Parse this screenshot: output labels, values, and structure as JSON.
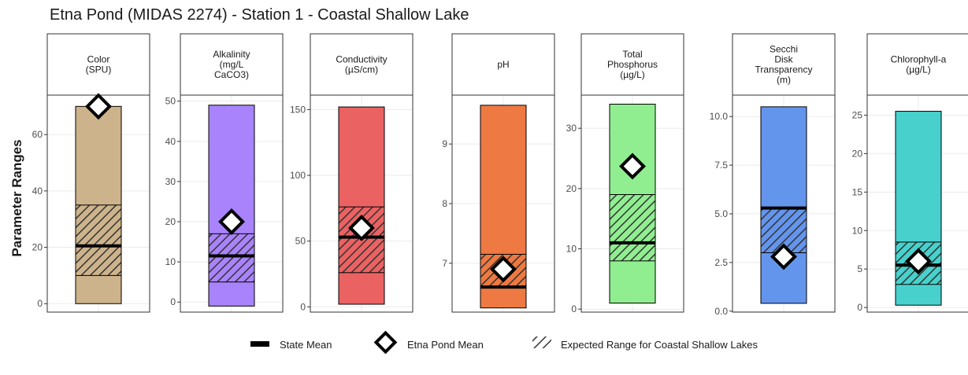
{
  "title": "Etna Pond (MIDAS 2274) - Station 1 - Coastal Shallow Lake",
  "ylabel": "Parameter Ranges",
  "legend": {
    "state_mean": "State Mean",
    "pond_mean": "Etna Pond Mean",
    "expected": "Expected Range for Coastal Shallow Lakes"
  },
  "chart_data": [
    {
      "type": "bar",
      "panel_label": [
        "Color",
        "(SPU)"
      ],
      "color": "#CDB38B",
      "ylim": [
        -3,
        74
      ],
      "ticks": [
        0,
        20,
        40,
        60
      ],
      "tick_labels": [
        "0",
        "20",
        "40",
        "60"
      ],
      "range": [
        0,
        70
      ],
      "expected": [
        10,
        35
      ],
      "state_mean": 20.5,
      "pond_mean": 70
    },
    {
      "type": "bar",
      "panel_label": [
        "Alkalinity",
        "(mg/L",
        "CaCO3)"
      ],
      "color": "#A983FB",
      "ylim": [
        -2.5,
        51.5
      ],
      "ticks": [
        0,
        10,
        20,
        30,
        40,
        50
      ],
      "tick_labels": [
        "0",
        "10",
        "20",
        "30",
        "40",
        "50"
      ],
      "range": [
        -1,
        49
      ],
      "expected": [
        5,
        17
      ],
      "state_mean": 11.5,
      "pond_mean": 20
    },
    {
      "type": "bar",
      "panel_label": [
        "Conductivity",
        "(µS/cm)"
      ],
      "color": "#EB6262",
      "ylim": [
        -4,
        161
      ],
      "ticks": [
        0,
        50,
        100,
        150
      ],
      "tick_labels": [
        "0",
        "50",
        "100",
        "150"
      ],
      "range": [
        2,
        152
      ],
      "expected": [
        26,
        76
      ],
      "state_mean": 53,
      "pond_mean": 60
    },
    {
      "type": "bar",
      "panel_label": [
        "pH"
      ],
      "color": "#EE7942",
      "ylim": [
        6.18,
        9.82
      ],
      "ticks": [
        7,
        8,
        9
      ],
      "tick_labels": [
        "7",
        "8",
        "9"
      ],
      "range": [
        6.25,
        9.65
      ],
      "expected": [
        6.6,
        7.15
      ],
      "state_mean": 6.6,
      "pond_mean": 6.9
    },
    {
      "type": "bar",
      "panel_label": [
        "Total",
        "Phosphorus",
        "(µg/L)"
      ],
      "color": "#90EE90",
      "ylim": [
        -0.5,
        35.5
      ],
      "ticks": [
        0,
        10,
        20,
        30
      ],
      "tick_labels": [
        "0",
        "10",
        "20",
        "30"
      ],
      "range": [
        1,
        34
      ],
      "expected": [
        8,
        19
      ],
      "state_mean": 11,
      "pond_mean": 23.7
    },
    {
      "type": "bar",
      "panel_label": [
        "Secchi",
        "Disk",
        "Transparency",
        "(m)"
      ],
      "color": "#6495ED",
      "ylim": [
        -0.05,
        11.1
      ],
      "ticks": [
        0,
        2.5,
        5,
        7.5,
        10
      ],
      "tick_labels": [
        "0.0",
        "2.5",
        "5.0",
        "7.5",
        "10.0"
      ],
      "range": [
        0.4,
        10.5
      ],
      "expected": [
        3,
        5.3
      ],
      "state_mean": 5.3,
      "pond_mean": 2.8
    },
    {
      "type": "bar",
      "panel_label": [
        "Chlorophyll-a",
        "(µg/L)"
      ],
      "color": "#48D1CC",
      "ylim": [
        -0.6,
        27.6
      ],
      "ticks": [
        0,
        5,
        10,
        15,
        20,
        25
      ],
      "tick_labels": [
        "0",
        "5",
        "10",
        "15",
        "20",
        "25"
      ],
      "range": [
        0.3,
        25.5
      ],
      "expected": [
        3,
        8.5
      ],
      "state_mean": 5.5,
      "pond_mean": 6
    }
  ]
}
